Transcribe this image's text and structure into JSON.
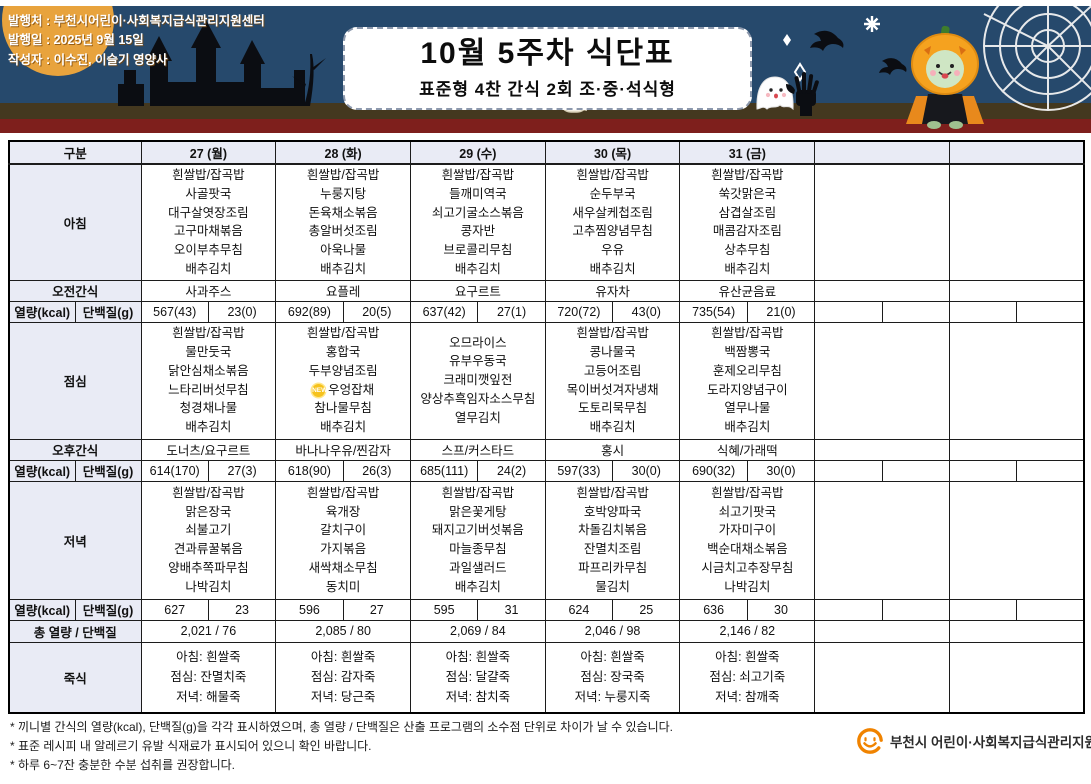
{
  "publisher": {
    "line1": "발행처 : 부천시어린이·사회복지급식관리지원센터",
    "line2": "발행일 : 2025년 9월 15일",
    "line3": "작성자 : 이수진, 이슬기 영양사"
  },
  "title": {
    "main": "10월 5주차 식단표",
    "subtitle": "표준형 4찬 간식 2회 조·중·석식형"
  },
  "table": {
    "labels": {
      "corner": "구분",
      "breakfast": "아침",
      "morning_snack": "오전간식",
      "energy": "열량(kcal)",
      "protein": "단백질(g)",
      "lunch": "점심",
      "afternoon_snack": "오후간식",
      "dinner": "저녁",
      "total": "총 열량 / 단백질",
      "porridge": "죽식"
    },
    "new_badge": "NEW",
    "days": [
      "27 (월)",
      "28 (화)",
      "29 (수)",
      "30 (목)",
      "31 (금)",
      "",
      ""
    ],
    "breakfast": [
      [
        "흰쌀밥/잡곡밥",
        "사골팟국",
        "대구살엿장조림",
        "고구마채볶음",
        "오이부추무침",
        "배추김치"
      ],
      [
        "흰쌀밥/잡곡밥",
        "누룽지탕",
        "돈육채소볶음",
        "총알버섯조림",
        "아욱나물",
        "배추김치"
      ],
      [
        "흰쌀밥/잡곡밥",
        "들깨미역국",
        "쇠고기굴소스볶음",
        "콩자반",
        "브로콜리무침",
        "배추김치"
      ],
      [
        "흰쌀밥/잡곡밥",
        "순두부국",
        "새우살케첩조림",
        "고추찜양념무침",
        "우유",
        "배추김치"
      ],
      [
        "흰쌀밥/잡곡밥",
        "쑥갓맑은국",
        "삼겹살조림",
        "매콤감자조림",
        "상추무침",
        "배추김치"
      ],
      [],
      []
    ],
    "morning_snack": [
      "사과주스",
      "요플레",
      "요구르트",
      "유자차",
      "유산균음료",
      "",
      ""
    ],
    "energy_breakfast": [
      [
        "567(43)",
        "23(0)"
      ],
      [
        "692(89)",
        "20(5)"
      ],
      [
        "637(42)",
        "27(1)"
      ],
      [
        "720(72)",
        "43(0)"
      ],
      [
        "735(54)",
        "21(0)"
      ],
      [
        "",
        ""
      ],
      [
        "",
        ""
      ]
    ],
    "lunch": [
      [
        "흰쌀밥/잡곡밥",
        "물만둣국",
        "닭안심채소볶음",
        "느타리버섯무침",
        "청경채나물",
        "배추김치"
      ],
      [
        "흰쌀밥/잡곡밥",
        "홍합국",
        "두부양념조림",
        "NEW:우엉잡채",
        "참나물무침",
        "배추김치"
      ],
      [
        "오므라이스",
        "유부우동국",
        "크래미깻잎전",
        "양상추흑임자소스무침",
        "열무김치"
      ],
      [
        "흰쌀밥/잡곡밥",
        "콩나물국",
        "고등어조림",
        "목이버섯겨자냉채",
        "도토리묵무침",
        "배추김치"
      ],
      [
        "흰쌀밥/잡곡밥",
        "백짬뽕국",
        "훈제오리무침",
        "도라지양념구이",
        "열무나물",
        "배추김치"
      ],
      [],
      []
    ],
    "afternoon_snack": [
      "도너츠/요구르트",
      "바나나우유/찐감자",
      "스프/커스타드",
      "홍시",
      "식혜/가래떡",
      "",
      ""
    ],
    "energy_lunch": [
      [
        "614(170)",
        "27(3)"
      ],
      [
        "618(90)",
        "26(3)"
      ],
      [
        "685(111)",
        "24(2)"
      ],
      [
        "597(33)",
        "30(0)"
      ],
      [
        "690(32)",
        "30(0)"
      ],
      [
        "",
        ""
      ],
      [
        "",
        ""
      ]
    ],
    "dinner": [
      [
        "흰쌀밥/잡곡밥",
        "맑은장국",
        "쇠불고기",
        "견과류꿀볶음",
        "양배추쪽파무침",
        "나박김치"
      ],
      [
        "흰쌀밥/잡곡밥",
        "육개장",
        "갈치구이",
        "가지볶음",
        "새싹채소무침",
        "동치미"
      ],
      [
        "흰쌀밥/잡곡밥",
        "맑은꽃게탕",
        "돼지고기버섯볶음",
        "마늘종무침",
        "과일샐러드",
        "배추김치"
      ],
      [
        "흰쌀밥/잡곡밥",
        "호박양파국",
        "차돌김치볶음",
        "잔멸치조림",
        "파프리카무침",
        "물김치"
      ],
      [
        "흰쌀밥/잡곡밥",
        "쇠고기팟국",
        "가자미구이",
        "백순대채소볶음",
        "시금치고추장무침",
        "나박김치"
      ],
      [],
      []
    ],
    "energy_dinner": [
      [
        "627",
        "23"
      ],
      [
        "596",
        "27"
      ],
      [
        "595",
        "31"
      ],
      [
        "624",
        "25"
      ],
      [
        "636",
        "30"
      ],
      [
        "",
        ""
      ],
      [
        "",
        ""
      ]
    ],
    "total_row": [
      "2,021 / 76",
      "2,085 / 80",
      "2,069 / 84",
      "2,046 / 98",
      "2,146 / 82",
      "",
      ""
    ],
    "porridge": [
      [
        "아침: 흰쌀죽",
        "점심: 잔멸치죽",
        "저녁: 해물죽"
      ],
      [
        "아침: 흰쌀죽",
        "점심: 감자죽",
        "저녁: 당근죽"
      ],
      [
        "아침: 흰쌀죽",
        "점심: 달걀죽",
        "저녁: 참치죽"
      ],
      [
        "아침: 흰쌀죽",
        "점심: 장국죽",
        "저녁: 누룽지죽"
      ],
      [
        "아침: 흰쌀죽",
        "점심: 쇠고기죽",
        "저녁: 참깨죽"
      ],
      [],
      []
    ]
  },
  "footnotes": [
    "* 끼니별 간식의 열량(kcal), 단백질(g)을 각각 표시하였으며, 총 열량 / 단백질은 산출 프로그램의 소수점 단위로 차이가 날 수 있습니다.",
    "* 표준 레시피 내 알레르기 유발 식재료가 표시되어 있으니 확인 바랍니다.",
    "* 하루 6~7잔 충분한 수분 섭취를 권장합니다."
  ],
  "footer_logo_text": "부천시 어린이·사회복지급식관리지원센터",
  "colors": {
    "banner_navy": "#26496c",
    "banner_ground": "#44381f",
    "banner_strip": "#7e1f1c",
    "header_cell_bg": "#e9ebf5",
    "new_badge_yellow": "#f6c21c",
    "logo_orange": "#f08300"
  }
}
